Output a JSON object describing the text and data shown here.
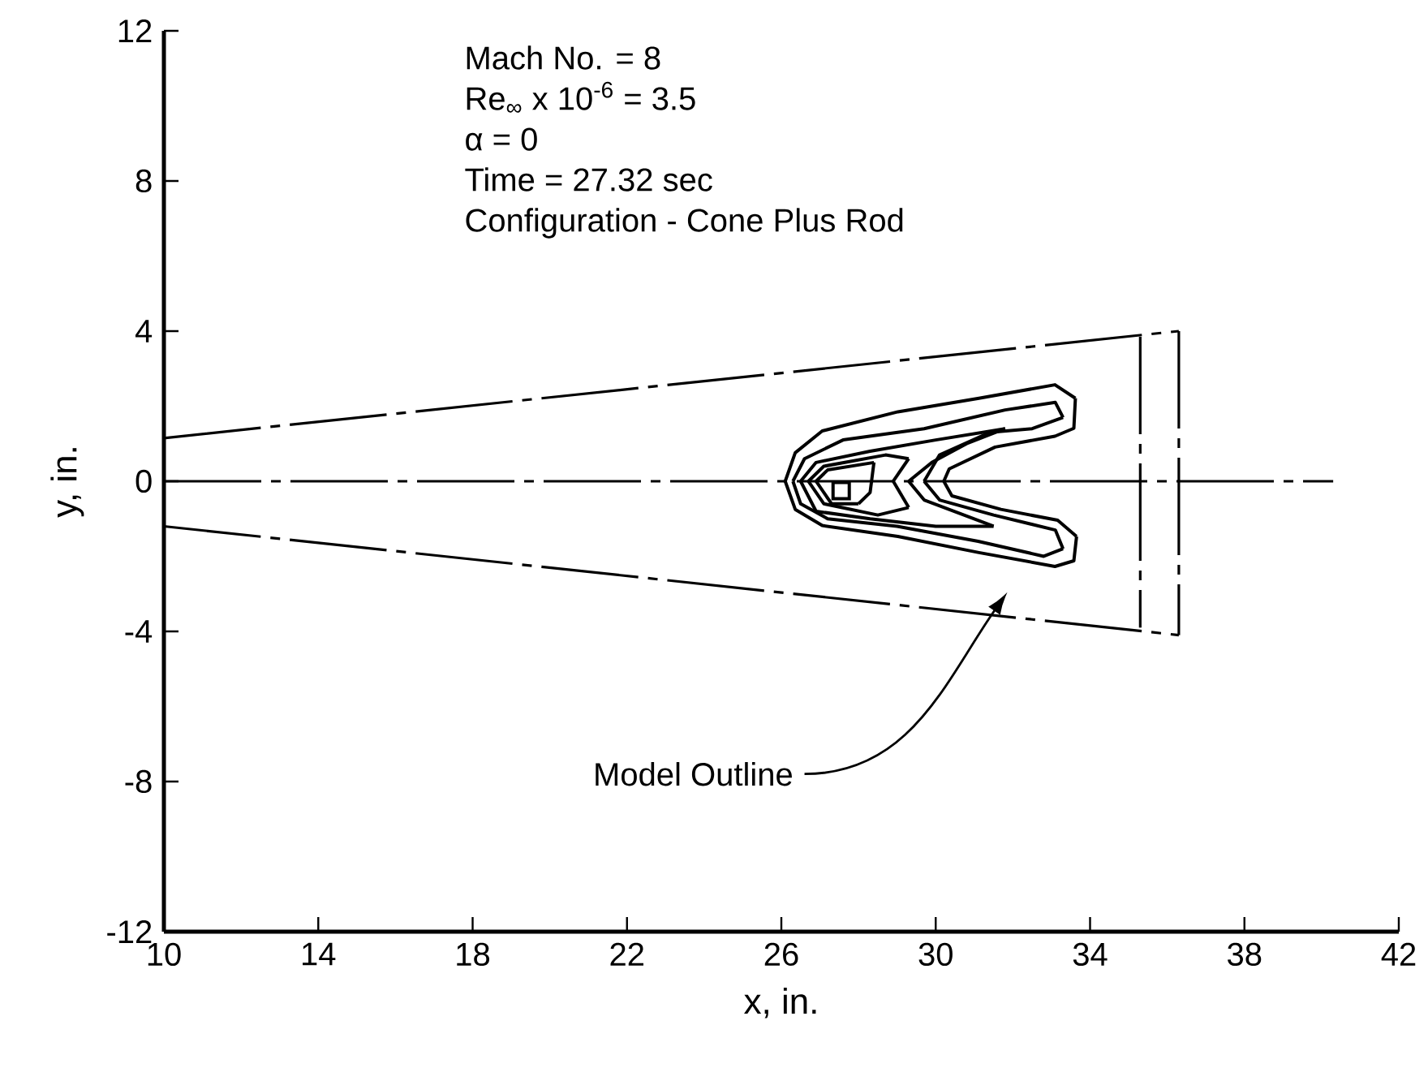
{
  "chart_data": {
    "type": "line",
    "xlabel": "x, in.",
    "ylabel": "y, in.",
    "xlim": [
      10,
      42
    ],
    "ylim": [
      -12,
      12
    ],
    "xticks": [
      10,
      14,
      18,
      22,
      26,
      30,
      34,
      38,
      42
    ],
    "yticks": [
      -12,
      -8,
      -4,
      0,
      4,
      8,
      12
    ],
    "annotations": [
      "Mach No.  = 8",
      "Re$_{∞}$ x 10$^{-6}$ = 3.5",
      "α  = 0",
      "Time = 27.32 sec",
      "Configuration - Cone Plus Rod",
      "Model Outline"
    ],
    "series": [
      {
        "color": "#000000",
        "line_style": "dashed",
        "x": [
          10,
          36.3
        ],
        "values": [
          1.15,
          4.0
        ]
      },
      {
        "color": "#000000",
        "line_style": "dashed",
        "x": [
          10,
          36.3
        ],
        "values": [
          -1.2,
          -4.1
        ]
      },
      {
        "color": "#000000",
        "line_style": "dashed",
        "x": [
          36.3,
          36.3
        ],
        "values": [
          4.0,
          -4.1
        ]
      },
      {
        "color": "#000000",
        "line_style": "dashed",
        "x": [
          35.3,
          35.3
        ],
        "values": [
          3.85,
          -3.9
        ]
      },
      {
        "color": "#000000",
        "line_style": "dashed",
        "x": [
          10,
          40.3
        ],
        "values": [
          0,
          0
        ]
      },
      {
        "color": "#000000",
        "line_style": "solid",
        "x": [
          26.1,
          26.36,
          27.06,
          29.02,
          31.12,
          33.09,
          33.62
        ],
        "values": [
          0,
          0.76,
          1.34,
          1.85,
          2.21,
          2.57,
          2.21
        ]
      },
      {
        "color": "#000000",
        "line_style": "solid",
        "x": [
          30.21,
          30.35,
          31.54,
          33.09,
          33.58,
          33.62
        ],
        "values": [
          0,
          0.33,
          0.91,
          1.2,
          1.41,
          2.21
        ]
      },
      {
        "color": "#000000",
        "line_style": "solid",
        "x": [
          30.21,
          30.42,
          31.69,
          33.16,
          33.65
        ],
        "values": [
          0,
          -0.39,
          -0.75,
          -1.04,
          -1.47
        ]
      },
      {
        "color": "#000000",
        "line_style": "solid",
        "x": [
          26.1,
          26.36,
          27.06,
          29.02,
          31.12,
          33.09,
          33.58,
          33.65
        ],
        "values": [
          0,
          -0.75,
          -1.18,
          -1.47,
          -1.9,
          -2.27,
          -2.12,
          -1.47
        ]
      },
      {
        "color": "#000000",
        "line_style": "solid",
        "x": [
          26.3,
          26.6,
          27.6,
          29.7,
          31.8,
          33.1,
          33.3
        ],
        "values": [
          0,
          0.6,
          1.1,
          1.4,
          1.9,
          2.1,
          1.7
        ]
      },
      {
        "color": "#000000",
        "line_style": "solid",
        "x": [
          29.7,
          30.1,
          31.4,
          32.5,
          33.3
        ],
        "values": [
          0,
          0.7,
          1.3,
          1.4,
          1.7
        ]
      },
      {
        "color": "#000000",
        "line_style": "solid",
        "x": [
          29.7,
          30.1,
          31.5,
          33.1,
          33.3
        ],
        "values": [
          0,
          -0.5,
          -0.9,
          -1.3,
          -1.8
        ]
      },
      {
        "color": "#000000",
        "line_style": "solid",
        "x": [
          26.3,
          26.5,
          27.2,
          29.0,
          31.1,
          32.8,
          33.3
        ],
        "values": [
          0,
          -0.6,
          -1.0,
          -1.2,
          -1.6,
          -2.0,
          -1.8
        ]
      },
      {
        "color": "#000000",
        "line_style": "solid",
        "x": [
          26.5,
          26.9,
          28.3,
          30.0,
          31.8
        ],
        "values": [
          0,
          0.5,
          0.8,
          1.1,
          1.4
        ]
      },
      {
        "color": "#000000",
        "line_style": "solid",
        "x": [
          29.3,
          29.9,
          30.8,
          31.8
        ],
        "values": [
          0,
          0.5,
          1.0,
          1.4
        ]
      },
      {
        "color": "#000000",
        "line_style": "solid",
        "x": [
          29.3,
          29.7,
          31.5
        ],
        "values": [
          0,
          -0.5,
          -1.2
        ]
      },
      {
        "color": "#000000",
        "line_style": "solid",
        "x": [
          26.5,
          26.9,
          28.3,
          30.0,
          31.5
        ],
        "values": [
          0,
          -0.8,
          -1.0,
          -1.2,
          -1.2
        ]
      },
      {
        "color": "#000000",
        "line_style": "solid",
        "x": [
          26.7,
          27.1,
          28.7,
          29.3
        ],
        "values": [
          0,
          0.4,
          0.7,
          0.6
        ]
      },
      {
        "color": "#000000",
        "line_style": "solid",
        "x": [
          28.9,
          29.3
        ],
        "values": [
          0,
          0.6
        ]
      },
      {
        "color": "#000000",
        "line_style": "solid",
        "x": [
          28.9,
          29.3
        ],
        "values": [
          0,
          -0.7
        ]
      },
      {
        "color": "#000000",
        "line_style": "solid",
        "x": [
          26.7,
          27.1,
          28.5,
          29.3
        ],
        "values": [
          0,
          -0.6,
          -0.9,
          -0.7
        ]
      },
      {
        "color": "#000000",
        "line_style": "solid",
        "x": [
          26.9,
          27.2,
          28.4
        ],
        "values": [
          0,
          0.3,
          0.5
        ]
      },
      {
        "color": "#000000",
        "line_style": "solid",
        "x": [
          28.0,
          28.3,
          28.4
        ],
        "values": [
          -0.6,
          -0.3,
          0.5
        ]
      },
      {
        "color": "#000000",
        "line_style": "solid",
        "x": [
          26.9,
          27.3,
          28.0
        ],
        "values": [
          0,
          -0.6,
          -0.6
        ]
      },
      {
        "type": "scatter",
        "marker": "square",
        "color": "#000000",
        "x": [
          27.55
        ],
        "values": [
          -0.25
        ]
      }
    ]
  }
}
